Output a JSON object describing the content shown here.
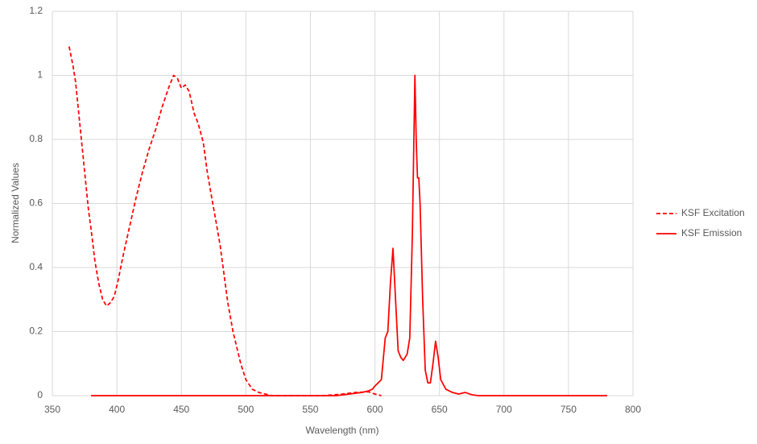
{
  "chart_data": {
    "type": "line",
    "x_label": "Wavelength (nm)",
    "y_label": "Normalized Values",
    "xlim": [
      350,
      800
    ],
    "xticks": [
      350,
      400,
      450,
      500,
      550,
      600,
      650,
      700,
      750,
      800
    ],
    "ylim": [
      0,
      1.2
    ],
    "yticks": [
      0,
      0.2,
      0.4,
      0.6,
      0.8,
      1,
      1.2
    ],
    "grid": true,
    "legend": "right",
    "series": [
      {
        "name": "KSF Excitation",
        "color": "#ff0000",
        "dash": true,
        "x": [
          363,
          366,
          368,
          370,
          372,
          375,
          378,
          380,
          383,
          386,
          389,
          392,
          395,
          398,
          401,
          405,
          410,
          415,
          420,
          425,
          430,
          435,
          440,
          444,
          447,
          450,
          453,
          456,
          460,
          463,
          467,
          470,
          473,
          477,
          480,
          483,
          486,
          490,
          493,
          496,
          500,
          505,
          510,
          515,
          520,
          560,
          575,
          585,
          595,
          600,
          605
        ],
        "values": [
          1.09,
          1.03,
          0.98,
          0.9,
          0.82,
          0.7,
          0.58,
          0.52,
          0.42,
          0.35,
          0.3,
          0.28,
          0.29,
          0.31,
          0.36,
          0.44,
          0.53,
          0.62,
          0.7,
          0.77,
          0.83,
          0.9,
          0.96,
          1.0,
          0.99,
          0.96,
          0.97,
          0.95,
          0.88,
          0.85,
          0.79,
          0.7,
          0.63,
          0.54,
          0.47,
          0.38,
          0.29,
          0.2,
          0.15,
          0.1,
          0.05,
          0.02,
          0.01,
          0.005,
          0,
          0,
          0.005,
          0.01,
          0.012,
          0.005,
          0
        ]
      },
      {
        "name": "KSF Emission",
        "color": "#ff0000",
        "dash": false,
        "x": [
          380,
          570,
          580,
          590,
          595,
          598,
          600,
          605,
          608,
          610,
          612,
          614,
          616,
          618,
          620,
          622,
          625,
          627,
          629,
          631,
          632,
          633,
          634,
          635,
          637,
          639,
          641,
          643,
          645,
          647,
          649,
          651,
          655,
          660,
          665,
          670,
          675,
          680,
          780
        ],
        "values": [
          0,
          0,
          0.005,
          0.01,
          0.015,
          0.02,
          0.03,
          0.05,
          0.18,
          0.2,
          0.35,
          0.46,
          0.3,
          0.14,
          0.12,
          0.11,
          0.13,
          0.18,
          0.5,
          1.0,
          0.8,
          0.68,
          0.68,
          0.6,
          0.3,
          0.08,
          0.04,
          0.04,
          0.1,
          0.17,
          0.12,
          0.05,
          0.02,
          0.01,
          0.005,
          0.01,
          0.003,
          0,
          0
        ]
      }
    ]
  }
}
